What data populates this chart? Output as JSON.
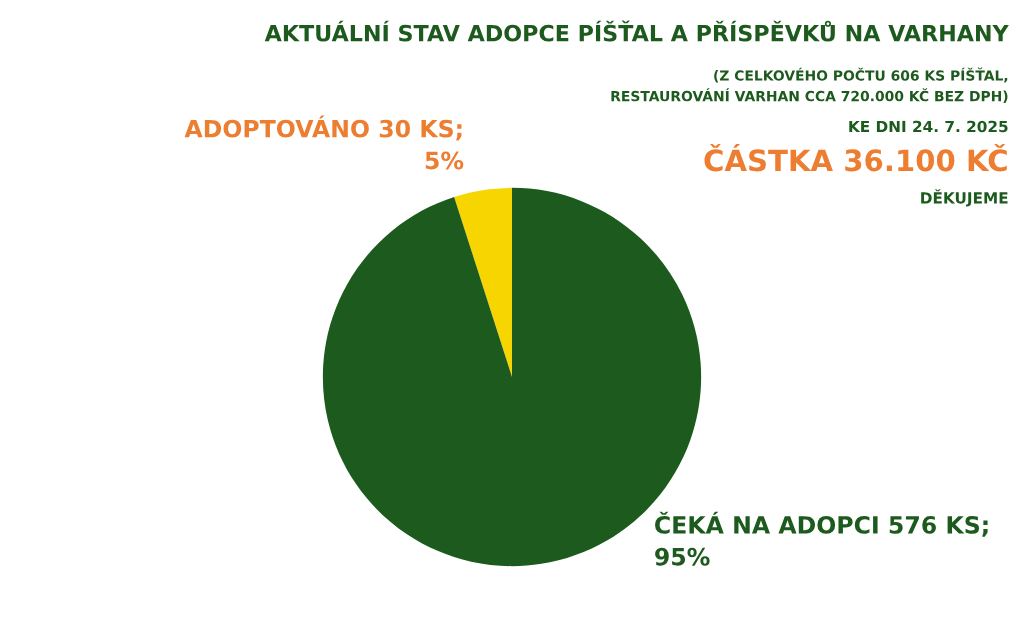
{
  "chart_data": {
    "type": "pie",
    "title": "AKTUÁLNÍ STAV ADOPCE PÍŠŤAL A PŘÍSPĚVKŮ NA VARHANY",
    "subtitle": "(Z CELKOVÉHO POČTU 606 KS PÍŠŤAL,\nRESTAUROVÁNÍ VARHAN CCA 720.000 KČ BEZ DPH)",
    "categories": [
      "ADOPTOVÁNO 30 KS;\n5%",
      "ČEKÁ NA ADOPCI 576 KS;\n95%"
    ],
    "values": [
      30,
      576
    ],
    "colors": [
      "#f7d500",
      "#1d5a1d"
    ],
    "annotations": [
      "KE DNI 24. 7. 2025",
      "ČÁSTKA 36.100 KČ",
      "DĚKUJEME"
    ]
  }
}
